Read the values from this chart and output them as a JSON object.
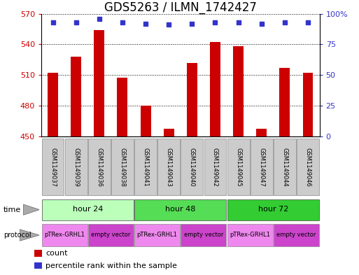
{
  "title": "GDS5263 / ILMN_1742427",
  "samples": [
    "GSM1149037",
    "GSM1149039",
    "GSM1149036",
    "GSM1149038",
    "GSM1149041",
    "GSM1149043",
    "GSM1149040",
    "GSM1149042",
    "GSM1149045",
    "GSM1149047",
    "GSM1149044",
    "GSM1149046"
  ],
  "counts": [
    512,
    528,
    554,
    507,
    480,
    457,
    522,
    542,
    538,
    457,
    517,
    512
  ],
  "percentiles": [
    93,
    93,
    96,
    93,
    92,
    91,
    92,
    93,
    93,
    92,
    93,
    93
  ],
  "ylim_left": [
    450,
    570
  ],
  "ylim_right": [
    0,
    100
  ],
  "yticks_left": [
    450,
    480,
    510,
    540,
    570
  ],
  "yticks_right": [
    0,
    25,
    50,
    75,
    100
  ],
  "bar_color": "#cc0000",
  "dot_color": "#3333cc",
  "bar_bottom": 450,
  "time_groups": [
    {
      "label": "hour 24",
      "start": 0,
      "end": 4,
      "color": "#bbffbb"
    },
    {
      "label": "hour 48",
      "start": 4,
      "end": 8,
      "color": "#55dd55"
    },
    {
      "label": "hour 72",
      "start": 8,
      "end": 12,
      "color": "#33cc33"
    }
  ],
  "protocol_groups": [
    {
      "label": "pTRex-GRHL1",
      "start": 0,
      "end": 2,
      "color": "#ee88ee"
    },
    {
      "label": "empty vector",
      "start": 2,
      "end": 4,
      "color": "#cc44cc"
    },
    {
      "label": "pTRex-GRHL1",
      "start": 4,
      "end": 6,
      "color": "#ee88ee"
    },
    {
      "label": "empty vector",
      "start": 6,
      "end": 8,
      "color": "#cc44cc"
    },
    {
      "label": "pTRex-GRHL1",
      "start": 8,
      "end": 10,
      "color": "#ee88ee"
    },
    {
      "label": "empty vector",
      "start": 10,
      "end": 12,
      "color": "#cc44cc"
    }
  ],
  "legend_items": [
    {
      "label": "count",
      "color": "#cc0000"
    },
    {
      "label": "percentile rank within the sample",
      "color": "#3333cc"
    }
  ],
  "background_color": "#ffffff",
  "sample_bg_color": "#cccccc",
  "title_fontsize": 12,
  "tick_fontsize": 8,
  "sample_fontsize": 6,
  "row_fontsize": 8,
  "legend_fontsize": 8
}
